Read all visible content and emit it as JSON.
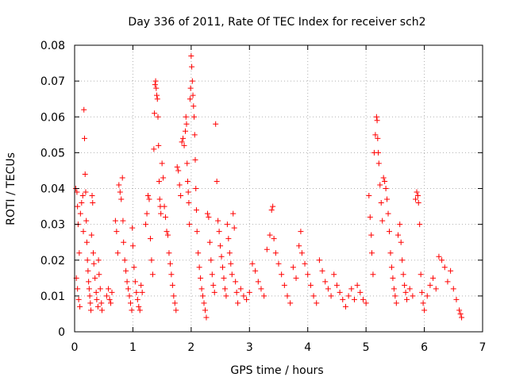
{
  "chart_data": {
    "type": "scatter",
    "title": "Day 336 of 2011, Rate Of TEC Index for receiver sch2",
    "xlabel": "GPS time / hours",
    "ylabel": "ROTI / TECUs",
    "xlim": [
      0,
      7
    ],
    "ylim": [
      0,
      0.08
    ],
    "x_ticks": [
      "0",
      "1",
      "2",
      "3",
      "4",
      "5",
      "6",
      "7"
    ],
    "y_ticks": [
      "0",
      "0.01",
      "0.02",
      "0.03",
      "0.04",
      "0.05",
      "0.06",
      "0.07",
      "0.08"
    ],
    "grid": true,
    "marker": "+",
    "color": "#ff0000",
    "series": [
      {
        "name": "ROTI",
        "points": [
          [
            0.02,
            0.04
          ],
          [
            0.04,
            0.039
          ],
          [
            0.05,
            0.035
          ],
          [
            0.06,
            0.03
          ],
          [
            0.08,
            0.022
          ],
          [
            0.03,
            0.015
          ],
          [
            0.05,
            0.012
          ],
          [
            0.07,
            0.009
          ],
          [
            0.09,
            0.007
          ],
          [
            0.1,
            0.033
          ],
          [
            0.12,
            0.036
          ],
          [
            0.14,
            0.038
          ],
          [
            0.15,
            0.028
          ],
          [
            0.16,
            0.062
          ],
          [
            0.17,
            0.054
          ],
          [
            0.18,
            0.044
          ],
          [
            0.19,
            0.039
          ],
          [
            0.2,
            0.031
          ],
          [
            0.21,
            0.025
          ],
          [
            0.22,
            0.02
          ],
          [
            0.23,
            0.017
          ],
          [
            0.24,
            0.014
          ],
          [
            0.25,
            0.012
          ],
          [
            0.26,
            0.01
          ],
          [
            0.27,
            0.008
          ],
          [
            0.28,
            0.006
          ],
          [
            0.29,
            0.027
          ],
          [
            0.3,
            0.038
          ],
          [
            0.31,
            0.036
          ],
          [
            0.32,
            0.022
          ],
          [
            0.33,
            0.019
          ],
          [
            0.35,
            0.015
          ],
          [
            0.37,
            0.011
          ],
          [
            0.38,
            0.009
          ],
          [
            0.4,
            0.007
          ],
          [
            0.41,
            0.02
          ],
          [
            0.42,
            0.016
          ],
          [
            0.44,
            0.012
          ],
          [
            0.46,
            0.008
          ],
          [
            0.47,
            0.006
          ],
          [
            0.55,
            0.01
          ],
          [
            0.58,
            0.012
          ],
          [
            0.6,
            0.009
          ],
          [
            0.62,
            0.008
          ],
          [
            0.64,
            0.011
          ],
          [
            0.7,
            0.031
          ],
          [
            0.72,
            0.028
          ],
          [
            0.74,
            0.022
          ],
          [
            0.76,
            0.041
          ],
          [
            0.78,
            0.039
          ],
          [
            0.8,
            0.037
          ],
          [
            0.82,
            0.043
          ],
          [
            0.83,
            0.031
          ],
          [
            0.84,
            0.025
          ],
          [
            0.86,
            0.02
          ],
          [
            0.88,
            0.017
          ],
          [
            0.9,
            0.014
          ],
          [
            0.92,
            0.012
          ],
          [
            0.94,
            0.01
          ],
          [
            0.96,
            0.008
          ],
          [
            0.98,
            0.006
          ],
          [
            0.99,
            0.029
          ],
          [
            1.0,
            0.024
          ],
          [
            1.02,
            0.018
          ],
          [
            1.04,
            0.014
          ],
          [
            1.06,
            0.011
          ],
          [
            1.08,
            0.009
          ],
          [
            1.1,
            0.007
          ],
          [
            1.12,
            0.006
          ],
          [
            1.14,
            0.013
          ],
          [
            1.16,
            0.011
          ],
          [
            1.22,
            0.03
          ],
          [
            1.24,
            0.033
          ],
          [
            1.26,
            0.038
          ],
          [
            1.28,
            0.037
          ],
          [
            1.3,
            0.026
          ],
          [
            1.32,
            0.02
          ],
          [
            1.34,
            0.016
          ],
          [
            1.36,
            0.051
          ],
          [
            1.37,
            0.061
          ],
          [
            1.38,
            0.069
          ],
          [
            1.39,
            0.07
          ],
          [
            1.4,
            0.068
          ],
          [
            1.41,
            0.066
          ],
          [
            1.42,
            0.065
          ],
          [
            1.43,
            0.06
          ],
          [
            1.44,
            0.052
          ],
          [
            1.45,
            0.042
          ],
          [
            1.46,
            0.037
          ],
          [
            1.47,
            0.035
          ],
          [
            1.48,
            0.033
          ],
          [
            1.5,
            0.047
          ],
          [
            1.52,
            0.043
          ],
          [
            1.54,
            0.035
          ],
          [
            1.56,
            0.032
          ],
          [
            1.58,
            0.028
          ],
          [
            1.6,
            0.027
          ],
          [
            1.62,
            0.022
          ],
          [
            1.64,
            0.019
          ],
          [
            1.66,
            0.016
          ],
          [
            1.68,
            0.013
          ],
          [
            1.7,
            0.01
          ],
          [
            1.72,
            0.008
          ],
          [
            1.74,
            0.006
          ],
          [
            1.76,
            0.046
          ],
          [
            1.78,
            0.045
          ],
          [
            1.8,
            0.041
          ],
          [
            1.82,
            0.038
          ],
          [
            1.84,
            0.053
          ],
          [
            1.86,
            0.054
          ],
          [
            1.88,
            0.052
          ],
          [
            1.9,
            0.056
          ],
          [
            1.91,
            0.06
          ],
          [
            1.92,
            0.058
          ],
          [
            1.93,
            0.047
          ],
          [
            1.94,
            0.042
          ],
          [
            1.95,
            0.039
          ],
          [
            1.96,
            0.036
          ],
          [
            1.97,
            0.03
          ],
          [
            1.98,
            0.065
          ],
          [
            1.99,
            0.068
          ],
          [
            2.0,
            0.077
          ],
          [
            2.01,
            0.074
          ],
          [
            2.02,
            0.07
          ],
          [
            2.03,
            0.066
          ],
          [
            2.04,
            0.063
          ],
          [
            2.05,
            0.06
          ],
          [
            2.06,
            0.055
          ],
          [
            2.07,
            0.048
          ],
          [
            2.08,
            0.04
          ],
          [
            2.09,
            0.034
          ],
          [
            2.1,
            0.028
          ],
          [
            2.12,
            0.022
          ],
          [
            2.14,
            0.018
          ],
          [
            2.16,
            0.015
          ],
          [
            2.18,
            0.012
          ],
          [
            2.2,
            0.01
          ],
          [
            2.22,
            0.008
          ],
          [
            2.24,
            0.006
          ],
          [
            2.26,
            0.004
          ],
          [
            2.28,
            0.033
          ],
          [
            2.3,
            0.032
          ],
          [
            2.32,
            0.025
          ],
          [
            2.34,
            0.02
          ],
          [
            2.36,
            0.016
          ],
          [
            2.38,
            0.013
          ],
          [
            2.4,
            0.011
          ],
          [
            2.42,
            0.058
          ],
          [
            2.44,
            0.042
          ],
          [
            2.46,
            0.031
          ],
          [
            2.48,
            0.028
          ],
          [
            2.5,
            0.024
          ],
          [
            2.52,
            0.021
          ],
          [
            2.54,
            0.018
          ],
          [
            2.56,
            0.015
          ],
          [
            2.58,
            0.012
          ],
          [
            2.6,
            0.01
          ],
          [
            2.62,
            0.03
          ],
          [
            2.64,
            0.026
          ],
          [
            2.66,
            0.022
          ],
          [
            2.68,
            0.019
          ],
          [
            2.7,
            0.016
          ],
          [
            2.72,
            0.033
          ],
          [
            2.74,
            0.029
          ],
          [
            2.76,
            0.014
          ],
          [
            2.78,
            0.011
          ],
          [
            2.8,
            0.008
          ],
          [
            2.85,
            0.012
          ],
          [
            2.9,
            0.01
          ],
          [
            2.95,
            0.009
          ],
          [
            3.0,
            0.011
          ],
          [
            3.05,
            0.019
          ],
          [
            3.1,
            0.017
          ],
          [
            3.15,
            0.014
          ],
          [
            3.2,
            0.012
          ],
          [
            3.25,
            0.01
          ],
          [
            3.3,
            0.023
          ],
          [
            3.35,
            0.027
          ],
          [
            3.38,
            0.034
          ],
          [
            3.4,
            0.035
          ],
          [
            3.42,
            0.026
          ],
          [
            3.45,
            0.022
          ],
          [
            3.5,
            0.019
          ],
          [
            3.55,
            0.016
          ],
          [
            3.6,
            0.013
          ],
          [
            3.65,
            0.01
          ],
          [
            3.7,
            0.008
          ],
          [
            3.75,
            0.018
          ],
          [
            3.8,
            0.015
          ],
          [
            3.85,
            0.024
          ],
          [
            3.88,
            0.028
          ],
          [
            3.9,
            0.022
          ],
          [
            3.95,
            0.019
          ],
          [
            4.0,
            0.016
          ],
          [
            4.05,
            0.013
          ],
          [
            4.1,
            0.01
          ],
          [
            4.15,
            0.008
          ],
          [
            4.2,
            0.02
          ],
          [
            4.25,
            0.017
          ],
          [
            4.3,
            0.014
          ],
          [
            4.35,
            0.012
          ],
          [
            4.4,
            0.01
          ],
          [
            4.45,
            0.016
          ],
          [
            4.5,
            0.013
          ],
          [
            4.55,
            0.011
          ],
          [
            4.6,
            0.009
          ],
          [
            4.65,
            0.007
          ],
          [
            4.7,
            0.01
          ],
          [
            4.75,
            0.012
          ],
          [
            4.8,
            0.009
          ],
          [
            4.85,
            0.013
          ],
          [
            4.9,
            0.011
          ],
          [
            4.95,
            0.009
          ],
          [
            5.0,
            0.008
          ],
          [
            5.05,
            0.038
          ],
          [
            5.07,
            0.032
          ],
          [
            5.09,
            0.027
          ],
          [
            5.1,
            0.022
          ],
          [
            5.12,
            0.016
          ],
          [
            5.14,
            0.05
          ],
          [
            5.16,
            0.055
          ],
          [
            5.18,
            0.06
          ],
          [
            5.19,
            0.059
          ],
          [
            5.2,
            0.054
          ],
          [
            5.21,
            0.05
          ],
          [
            5.22,
            0.047
          ],
          [
            5.24,
            0.041
          ],
          [
            5.26,
            0.036
          ],
          [
            5.28,
            0.031
          ],
          [
            5.3,
            0.043
          ],
          [
            5.32,
            0.042
          ],
          [
            5.34,
            0.04
          ],
          [
            5.36,
            0.037
          ],
          [
            5.38,
            0.033
          ],
          [
            5.4,
            0.028
          ],
          [
            5.42,
            0.022
          ],
          [
            5.44,
            0.018
          ],
          [
            5.46,
            0.015
          ],
          [
            5.48,
            0.012
          ],
          [
            5.5,
            0.01
          ],
          [
            5.52,
            0.008
          ],
          [
            5.55,
            0.027
          ],
          [
            5.58,
            0.03
          ],
          [
            5.6,
            0.025
          ],
          [
            5.62,
            0.02
          ],
          [
            5.64,
            0.016
          ],
          [
            5.66,
            0.013
          ],
          [
            5.68,
            0.011
          ],
          [
            5.7,
            0.009
          ],
          [
            5.75,
            0.012
          ],
          [
            5.8,
            0.01
          ],
          [
            5.85,
            0.037
          ],
          [
            5.87,
            0.039
          ],
          [
            5.89,
            0.038
          ],
          [
            5.9,
            0.036
          ],
          [
            5.92,
            0.03
          ],
          [
            5.94,
            0.016
          ],
          [
            5.96,
            0.011
          ],
          [
            5.98,
            0.008
          ],
          [
            6.0,
            0.006
          ],
          [
            6.05,
            0.01
          ],
          [
            6.1,
            0.013
          ],
          [
            6.15,
            0.015
          ],
          [
            6.2,
            0.012
          ],
          [
            6.25,
            0.021
          ],
          [
            6.3,
            0.02
          ],
          [
            6.35,
            0.018
          ],
          [
            6.4,
            0.014
          ],
          [
            6.45,
            0.017
          ],
          [
            6.5,
            0.012
          ],
          [
            6.55,
            0.009
          ],
          [
            6.6,
            0.006
          ],
          [
            6.62,
            0.005
          ],
          [
            6.64,
            0.004
          ]
        ]
      }
    ]
  }
}
